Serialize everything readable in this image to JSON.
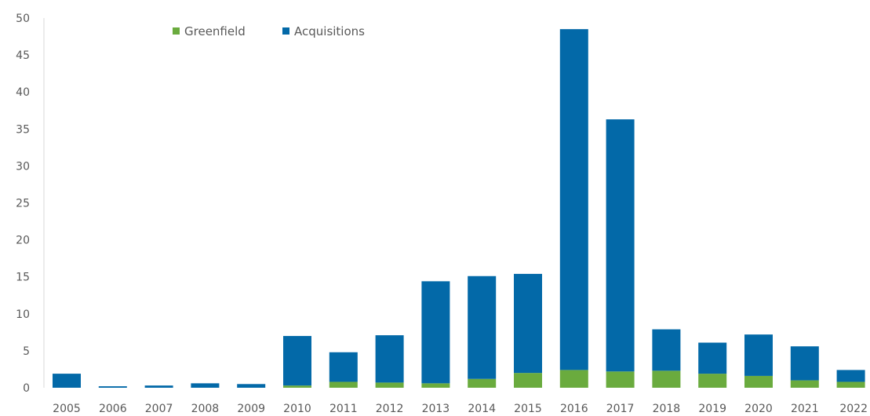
{
  "chart_data": {
    "type": "bar",
    "stacked": true,
    "title": "",
    "xlabel": "",
    "ylabel": "",
    "categories": [
      "2005",
      "2006",
      "2007",
      "2008",
      "2009",
      "2010",
      "2011",
      "2012",
      "2013",
      "2014",
      "2015",
      "2016",
      "2017",
      "2018",
      "2019",
      "2020",
      "2021",
      "2022"
    ],
    "series": [
      {
        "name": "Greenfield",
        "color": "#6aab3e",
        "values": [
          0,
          0,
          0,
          0,
          0,
          0.3,
          0.8,
          0.7,
          0.6,
          1.2,
          2.0,
          2.4,
          2.2,
          2.3,
          1.9,
          1.6,
          1.0,
          0.8
        ]
      },
      {
        "name": "Acquisitions",
        "color": "#0369a8",
        "values": [
          1.9,
          0.2,
          0.3,
          0.6,
          0.5,
          6.7,
          4.0,
          6.4,
          13.8,
          13.9,
          13.4,
          46.1,
          34.1,
          5.6,
          4.2,
          5.6,
          4.6,
          1.6
        ]
      }
    ],
    "ylim": [
      0,
      50
    ],
    "yticks": [
      0,
      5,
      10,
      15,
      20,
      25,
      30,
      35,
      40,
      45,
      50
    ],
    "ytick_labels": [
      "0",
      "5",
      "10",
      "15",
      "20",
      "25",
      "30",
      "35",
      "40",
      "45",
      "50"
    ],
    "legend_position": "top-center",
    "grid": false
  }
}
